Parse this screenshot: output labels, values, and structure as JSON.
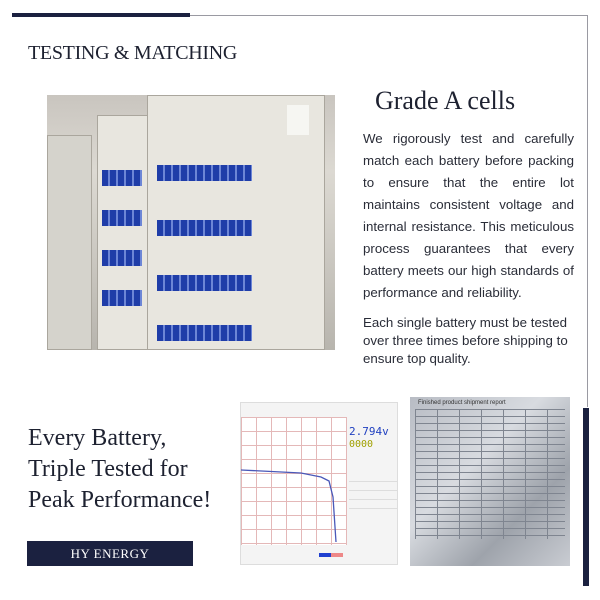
{
  "header": {
    "title": "TESTING & MATCHING"
  },
  "feature": {
    "title": "Grade A cells",
    "paragraph1": "We rigorously test and carefully match each battery before packing to ensure that the entire lot maintains consistent voltage and internal resistance. This meticulous process guarantees that every battery meets our high standards of performance and reliability.",
    "paragraph2": "Each single battery must be tested over three times before shipping to ensure top quality."
  },
  "headline": {
    "lines": [
      "Every Battery,",
      "Triple Tested for",
      "Peak Performance!"
    ]
  },
  "brand": {
    "label": "HY ENERGY"
  },
  "software": {
    "voltage_reading": "2.794v",
    "capacity_reading": "0000",
    "report_title": "Finished product shipment report"
  },
  "colors": {
    "navy": "#1b2140",
    "curve": "#4a58b8"
  }
}
